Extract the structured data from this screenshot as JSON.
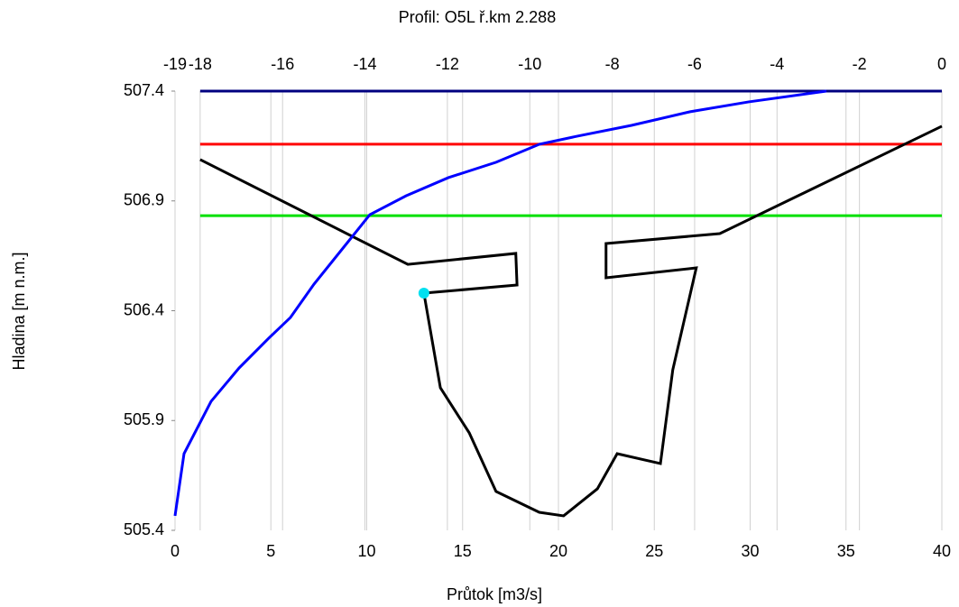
{
  "chart_data": {
    "type": "line",
    "title": "Profil: O5L  ř.km 2.288",
    "xlabel": "Průtok [m3/s]",
    "ylabel": "Hladina [m n.m.]",
    "xlim": [
      0,
      40
    ],
    "xticks": [
      0,
      5,
      10,
      15,
      20,
      25,
      30,
      35,
      40
    ],
    "x2lim": [
      -18.61,
      0
    ],
    "x2ticks": [
      {
        "value": -18.61,
        "label": "-19"
      },
      -18,
      -16,
      -14,
      -12,
      -10,
      -8,
      -6,
      -4,
      -2,
      0
    ],
    "ylim": [
      505.4,
      507.4
    ],
    "yticks": [
      505.4,
      505.9,
      506.4,
      506.9,
      507.4
    ],
    "grid": true,
    "series": [
      {
        "color": "#000080",
        "axis": "x2",
        "x": [
          -18,
          0
        ],
        "values": [
          507.4,
          507.4
        ]
      },
      {
        "color": "#ff0000",
        "axis": "x2",
        "x": [
          -18,
          0
        ],
        "values": [
          507.158,
          507.158
        ]
      },
      {
        "color": "#00e000",
        "axis": "x2",
        "x": [
          -18,
          0
        ],
        "values": [
          506.833,
          506.833
        ]
      },
      {
        "color": "#000000",
        "axis": "x2",
        "x": [
          -18.0,
          -12.96,
          -10.34,
          -10.31,
          -12.57,
          -12.17,
          -11.47,
          -10.82,
          -9.77,
          -9.18,
          -8.36,
          -7.88,
          -6.83,
          -6.53,
          -5.96,
          -8.15,
          -8.15,
          -5.39,
          0
        ],
        "values": [
          507.088,
          506.611,
          506.661,
          506.517,
          506.48,
          506.049,
          505.844,
          505.577,
          505.482,
          505.466,
          505.589,
          505.749,
          505.704,
          506.131,
          506.595,
          506.55,
          506.706,
          506.751,
          507.24
        ]
      },
      {
        "color": "#0000ff",
        "x": [
          0,
          0.47,
          1.88,
          3.34,
          4.89,
          6.02,
          7.25,
          10.16,
          12.05,
          14.26,
          16.75,
          19.01,
          20.99,
          23.81,
          26.87,
          29.93,
          33.98
        ],
        "values": [
          505.466,
          505.749,
          505.987,
          506.139,
          506.275,
          506.369,
          506.521,
          506.837,
          506.923,
          507.006,
          507.076,
          507.158,
          507.195,
          507.244,
          507.306,
          507.351,
          507.4
        ]
      },
      {
        "color": "#00e0f0",
        "axis": "x2",
        "marker": true,
        "x": [
          -12.57
        ],
        "values": [
          506.48
        ]
      }
    ]
  }
}
